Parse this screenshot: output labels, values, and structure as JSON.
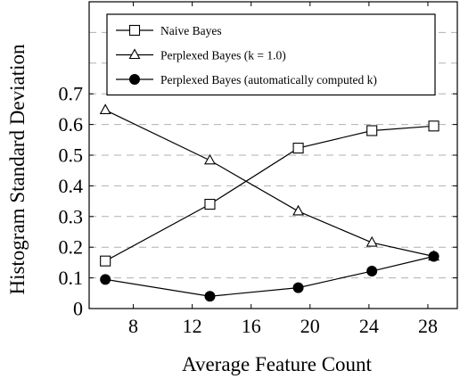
{
  "chart_data": {
    "type": "line",
    "title": "",
    "xlabel": "Average Feature Count",
    "ylabel": "Histogram Standard Deviation",
    "xlim": [
      5,
      30
    ],
    "ylim": [
      0,
      1.0
    ],
    "xticks": [
      8,
      12,
      16,
      20,
      24,
      28
    ],
    "yticks": [
      0,
      0.1,
      0.2,
      0.3,
      0.4,
      0.5,
      0.6,
      0.7
    ],
    "xtick_labels": [
      "8",
      "12",
      "16",
      "20",
      "24",
      "28"
    ],
    "ytick_labels": [
      "0",
      "0.1",
      "0.2",
      "0.3",
      "0.4",
      "0.5",
      "0.6",
      "0.7"
    ],
    "grid": "horizontal dashed",
    "legend_position": "top-right",
    "series": [
      {
        "name": "Naive Bayes",
        "marker": "square",
        "x": [
          6.1,
          13.2,
          19.2,
          24.2,
          28.4
        ],
        "y": [
          0.155,
          0.34,
          0.523,
          0.58,
          0.595
        ]
      },
      {
        "name": "Perplexed Bayes (k = 1.0)",
        "marker": "triangle",
        "x": [
          6.1,
          13.2,
          19.2,
          24.2,
          28.4
        ],
        "y": [
          0.647,
          0.483,
          0.317,
          0.215,
          0.17
        ]
      },
      {
        "name": "Perplexed Bayes (automatically computed k)",
        "marker": "circle",
        "x": [
          6.1,
          13.2,
          19.2,
          24.2,
          28.4
        ],
        "y": [
          0.095,
          0.04,
          0.068,
          0.122,
          0.17
        ]
      }
    ]
  }
}
